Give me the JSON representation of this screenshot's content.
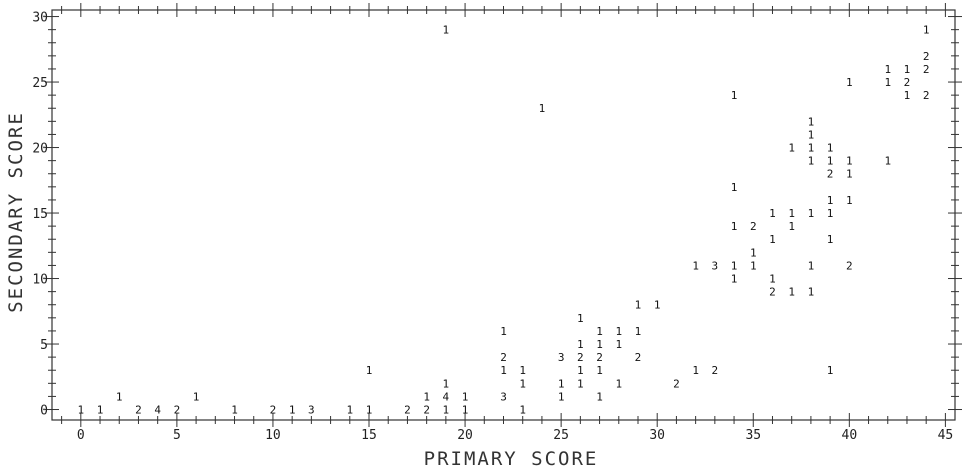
{
  "chart_data": {
    "type": "scatter",
    "xlabel": "PRIMARY SCORE",
    "ylabel": "SECONDARY SCORE",
    "xlim": [
      -1.5,
      45.5
    ],
    "ylim": [
      -0.8,
      30.5
    ],
    "x_ticks": [
      0,
      5,
      10,
      15,
      20,
      25,
      30,
      35,
      40,
      45
    ],
    "y_ticks": [
      0,
      5,
      10,
      15,
      20,
      25,
      30
    ],
    "grid": false,
    "marker": "count of observations printed as a digit",
    "points": [
      {
        "x": 0,
        "y": 0,
        "label": "1"
      },
      {
        "x": 1,
        "y": 0,
        "label": "1"
      },
      {
        "x": 2,
        "y": 1,
        "label": "1"
      },
      {
        "x": 3,
        "y": 0,
        "label": "2"
      },
      {
        "x": 4,
        "y": 0,
        "label": "4"
      },
      {
        "x": 5,
        "y": 0,
        "label": "2"
      },
      {
        "x": 6,
        "y": 1,
        "label": "1"
      },
      {
        "x": 8,
        "y": 0,
        "label": "1"
      },
      {
        "x": 10,
        "y": 0,
        "label": "2"
      },
      {
        "x": 11,
        "y": 0,
        "label": "1"
      },
      {
        "x": 12,
        "y": 0,
        "label": "3"
      },
      {
        "x": 14,
        "y": 0,
        "label": "1"
      },
      {
        "x": 15,
        "y": 0,
        "label": "1"
      },
      {
        "x": 15,
        "y": 3,
        "label": "1"
      },
      {
        "x": 17,
        "y": 0,
        "label": "2"
      },
      {
        "x": 18,
        "y": 0,
        "label": "2"
      },
      {
        "x": 18,
        "y": 1,
        "label": "1"
      },
      {
        "x": 19,
        "y": 0,
        "label": "1"
      },
      {
        "x": 19,
        "y": 1,
        "label": "4"
      },
      {
        "x": 19,
        "y": 2,
        "label": "1"
      },
      {
        "x": 19,
        "y": 29,
        "label": "1"
      },
      {
        "x": 20,
        "y": 0,
        "label": "1"
      },
      {
        "x": 20,
        "y": 1,
        "label": "1"
      },
      {
        "x": 22,
        "y": 1,
        "label": "3"
      },
      {
        "x": 22,
        "y": 3,
        "label": "1"
      },
      {
        "x": 22,
        "y": 4,
        "label": "2"
      },
      {
        "x": 22,
        "y": 6,
        "label": "1"
      },
      {
        "x": 23,
        "y": 0,
        "label": "1"
      },
      {
        "x": 23,
        "y": 2,
        "label": "1"
      },
      {
        "x": 23,
        "y": 3,
        "label": "1"
      },
      {
        "x": 24,
        "y": 23,
        "label": "1"
      },
      {
        "x": 25,
        "y": 1,
        "label": "1"
      },
      {
        "x": 25,
        "y": 2,
        "label": "1"
      },
      {
        "x": 25,
        "y": 4,
        "label": "3"
      },
      {
        "x": 26,
        "y": 2,
        "label": "1"
      },
      {
        "x": 26,
        "y": 3,
        "label": "1"
      },
      {
        "x": 26,
        "y": 4,
        "label": "2"
      },
      {
        "x": 26,
        "y": 5,
        "label": "1"
      },
      {
        "x": 26,
        "y": 7,
        "label": "1"
      },
      {
        "x": 27,
        "y": 1,
        "label": "1"
      },
      {
        "x": 27,
        "y": 3,
        "label": "1"
      },
      {
        "x": 27,
        "y": 4,
        "label": "2"
      },
      {
        "x": 27,
        "y": 5,
        "label": "1"
      },
      {
        "x": 27,
        "y": 6,
        "label": "1"
      },
      {
        "x": 28,
        "y": 2,
        "label": "1"
      },
      {
        "x": 28,
        "y": 5,
        "label": "1"
      },
      {
        "x": 28,
        "y": 6,
        "label": "1"
      },
      {
        "x": 29,
        "y": 4,
        "label": "2"
      },
      {
        "x": 29,
        "y": 6,
        "label": "1"
      },
      {
        "x": 29,
        "y": 8,
        "label": "1"
      },
      {
        "x": 30,
        "y": 8,
        "label": "1"
      },
      {
        "x": 31,
        "y": 2,
        "label": "2"
      },
      {
        "x": 32,
        "y": 3,
        "label": "1"
      },
      {
        "x": 32,
        "y": 11,
        "label": "1"
      },
      {
        "x": 33,
        "y": 3,
        "label": "2"
      },
      {
        "x": 33,
        "y": 11,
        "label": "3"
      },
      {
        "x": 34,
        "y": 10,
        "label": "1"
      },
      {
        "x": 34,
        "y": 11,
        "label": "1"
      },
      {
        "x": 34,
        "y": 14,
        "label": "1"
      },
      {
        "x": 34,
        "y": 17,
        "label": "1"
      },
      {
        "x": 34,
        "y": 24,
        "label": "1"
      },
      {
        "x": 35,
        "y": 11,
        "label": "1"
      },
      {
        "x": 35,
        "y": 12,
        "label": "1"
      },
      {
        "x": 35,
        "y": 14,
        "label": "2"
      },
      {
        "x": 36,
        "y": 9,
        "label": "2"
      },
      {
        "x": 36,
        "y": 10,
        "label": "1"
      },
      {
        "x": 36,
        "y": 13,
        "label": "1"
      },
      {
        "x": 36,
        "y": 15,
        "label": "1"
      },
      {
        "x": 37,
        "y": 9,
        "label": "1"
      },
      {
        "x": 37,
        "y": 14,
        "label": "1"
      },
      {
        "x": 37,
        "y": 15,
        "label": "1"
      },
      {
        "x": 37,
        "y": 20,
        "label": "1"
      },
      {
        "x": 38,
        "y": 9,
        "label": "1"
      },
      {
        "x": 38,
        "y": 11,
        "label": "1"
      },
      {
        "x": 38,
        "y": 15,
        "label": "1"
      },
      {
        "x": 38,
        "y": 19,
        "label": "1"
      },
      {
        "x": 38,
        "y": 20,
        "label": "1"
      },
      {
        "x": 38,
        "y": 21,
        "label": "1"
      },
      {
        "x": 38,
        "y": 22,
        "label": "1"
      },
      {
        "x": 39,
        "y": 3,
        "label": "1"
      },
      {
        "x": 39,
        "y": 13,
        "label": "1"
      },
      {
        "x": 39,
        "y": 15,
        "label": "1"
      },
      {
        "x": 39,
        "y": 16,
        "label": "1"
      },
      {
        "x": 39,
        "y": 18,
        "label": "2"
      },
      {
        "x": 39,
        "y": 19,
        "label": "1"
      },
      {
        "x": 39,
        "y": 20,
        "label": "1"
      },
      {
        "x": 40,
        "y": 11,
        "label": "2"
      },
      {
        "x": 40,
        "y": 16,
        "label": "1"
      },
      {
        "x": 40,
        "y": 18,
        "label": "1"
      },
      {
        "x": 40,
        "y": 19,
        "label": "1"
      },
      {
        "x": 40,
        "y": 25,
        "label": "1"
      },
      {
        "x": 42,
        "y": 19,
        "label": "1"
      },
      {
        "x": 42,
        "y": 25,
        "label": "1"
      },
      {
        "x": 42,
        "y": 26,
        "label": "1"
      },
      {
        "x": 43,
        "y": 24,
        "label": "1"
      },
      {
        "x": 43,
        "y": 25,
        "label": "2"
      },
      {
        "x": 43,
        "y": 26,
        "label": "1"
      },
      {
        "x": 44,
        "y": 24,
        "label": "2"
      },
      {
        "x": 44,
        "y": 26,
        "label": "2"
      },
      {
        "x": 44,
        "y": 27,
        "label": "2"
      },
      {
        "x": 44,
        "y": 29,
        "label": "1"
      }
    ]
  }
}
